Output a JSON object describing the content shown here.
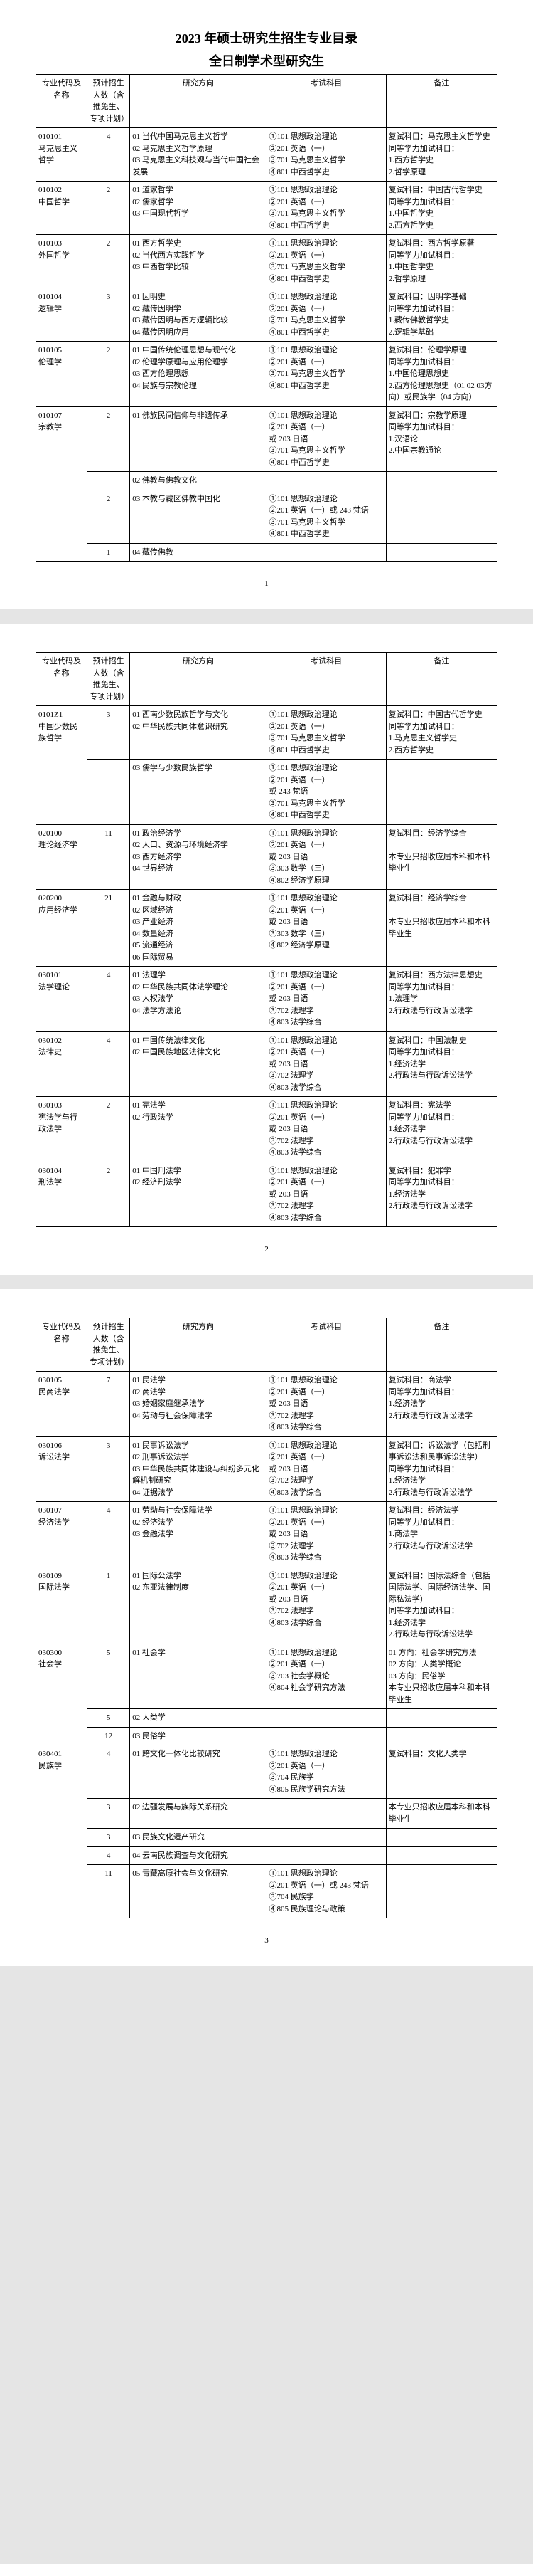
{
  "doc_title": "2023 年硕士研究生招生专业目录",
  "doc_subtitle": "全日制学术型研究生",
  "headers": {
    "code": "专业代码及名称",
    "count": "预计招生人数（含推免生、专项计划）",
    "dir": "研究方向",
    "exam": "考试科目",
    "note": "备注"
  },
  "page1": {
    "rows": [
      {
        "code": "010101\n马克思主义哲学",
        "count": "4",
        "dirs": "01 当代中国马克思主义哲学\n02 马克思主义哲学原理\n03 马克思主义科技观与当代中国社会发展",
        "exam": "①101 思想政治理论\n②201 英语（一）\n③701 马克思主义哲学\n④801 中西哲学史",
        "note": "复试科目：马克思主义哲学史\n同等学力加试科目：\n1.西方哲学史\n2.哲学原理"
      },
      {
        "code": "010102\n中国哲学",
        "count": "2",
        "dirs": "01 道家哲学\n02 儒家哲学\n03 中国现代哲学",
        "exam": "①101 思想政治理论\n②201 英语（一）\n③701 马克思主义哲学\n④801 中西哲学史",
        "note": "复试科目：中国古代哲学史\n同等学力加试科目：\n1.中国哲学史\n2.西方哲学史"
      },
      {
        "code": "010103\n外国哲学",
        "count": "2",
        "dirs": "01 西方哲学史\n02 当代西方实践哲学\n03 中西哲学比较",
        "exam": "①101 思想政治理论\n②201 英语（一）\n③701 马克思主义哲学\n④801 中西哲学史",
        "note": "复试科目：西方哲学原著\n同等学力加试科目：\n1.中国哲学史\n2.哲学原理"
      },
      {
        "code": "010104\n逻辑学",
        "count": "3",
        "dirs": "01 因明史\n02 藏传因明学\n03 藏传因明与西方逻辑比较\n04 藏传因明应用",
        "exam": "①101 思想政治理论\n②201 英语（一）\n③701 马克思主义哲学\n④801 中西哲学史",
        "note": "复试科目：因明学基础\n同等学力加试科目：\n1.藏传佛教哲学史\n2.逻辑学基础"
      },
      {
        "code": "010105\n伦理学",
        "count": "2",
        "dirs": "01 中国传统伦理思想与现代化\n02 伦理学原理与应用伦理学\n03 西方伦理思想\n04 民族与宗教伦理",
        "exam": "①101 思想政治理论\n②201 英语（一）\n③701 马克思主义哲学\n④801 中西哲学史",
        "note": "复试科目：伦理学原理\n同等学力加试科目：\n1.中国伦理思想史\n2.西方伦理思想史（01 02 03方向）或民族学（04 方向）"
      },
      {
        "code": "010107\n宗教学",
        "count": "2",
        "sub": [
          {
            "dirs": "01 佛族民间信仰与非遗传承",
            "exam": "①101 思想政治理论\n②201 英语（一）\n或 203 日语\n③701 马克思主义哲学\n④801 中西哲学史",
            "note": "复试科目：宗教学原理\n同等学力加试科目：\n1.汉语论\n2.中国宗教通论"
          },
          {
            "dirs": "02 佛教与佛教文化",
            "exam": "",
            "note": ""
          },
          {
            "count": "2",
            "dirs": "03 本教与藏区佛教中国化",
            "exam": "①101 思想政治理论\n②201 英语（一）或 243 梵语\n③701 马克思主义哲学\n④801 中西哲学史",
            "note": ""
          },
          {
            "count": "1",
            "dirs": "04 藏传佛教",
            "exam": "",
            "note": ""
          }
        ]
      }
    ],
    "pagenum": "1"
  },
  "page2": {
    "rows": [
      {
        "code": "0101Z1\n中国少数民族哲学",
        "count": "3",
        "sub": [
          {
            "dirs": "01 西南少数民族哲学与文化\n02 中华民族共同体意识研究",
            "exam": "①101 思想政治理论\n②201 英语（一）\n③701 马克思主义哲学\n④801 中西哲学史",
            "note": "复试科目：中国古代哲学史\n同等学力加试科目：\n1.马克思主义哲学史\n2.西方哲学史"
          },
          {
            "dirs": "03 儒学与少数民族哲学",
            "exam": "①101 思想政治理论\n②201 英语（一）\n或 243 梵语\n③701 马克思主义哲学\n④801 中西哲学史",
            "note": ""
          }
        ]
      },
      {
        "code": "020100\n理论经济学",
        "count": "11",
        "dirs": "01 政治经济学\n02 人口、资源与环境经济学\n03 西方经济学\n04 世界经济",
        "exam": "①101 思想政治理论\n②201 英语（一）\n或 203 日语\n③303 数学（三）\n④802 经济学原理",
        "note": "复试科目：经济学综合\n\n本专业只招收应届本科和本科毕业生"
      },
      {
        "code": "020200\n应用经济学",
        "count": "21",
        "dirs": "01 金融与财政\n02 区域经济\n03 产业经济\n04 数量经济\n05 流通经济\n06 国际贸易",
        "exam": "①101 思想政治理论\n②201 英语（一）\n或 203 日语\n③303 数学（三）\n④802 经济学原理",
        "note": "复试科目：经济学综合\n\n本专业只招收应届本科和本科毕业生"
      },
      {
        "code": "030101\n法学理论",
        "count": "4",
        "dirs": "01 法理学\n02 中华民族共同体法学理论\n03 人权法学\n04 法学方法论",
        "exam": "①101 思想政治理论\n②201 英语（一）\n或 203 日语\n③702 法理学\n④803 法学综合",
        "note": "复试科目：西方法律思想史\n同等学力加试科目：\n1.法理学\n2.行政法与行政诉讼法学"
      },
      {
        "code": "030102\n法律史",
        "count": "4",
        "dirs": "01 中国传统法律文化\n02 中国民族地区法律文化",
        "exam": "①101 思想政治理论\n②201 英语（一）\n或 203 日语\n③702 法理学\n④803 法学综合",
        "note": "复试科目：中国法制史\n同等学力加试科目：\n1.经济法学\n2.行政法与行政诉讼法学"
      },
      {
        "code": "030103\n宪法学与行政法学",
        "count": "2",
        "dirs": "01 宪法学\n02 行政法学",
        "exam": "①101 思想政治理论\n②201 英语（一）\n或 203 日语\n③702 法理学\n④803 法学综合",
        "note": "复试科目：宪法学\n同等学力加试科目：\n1.经济法学\n2.行政法与行政诉讼法学"
      },
      {
        "code": "030104\n刑法学",
        "count": "2",
        "dirs": "01 中国刑法学\n02 经济刑法学",
        "exam": "①101 思想政治理论\n②201 英语（一）\n或 203 日语\n③702 法理学\n④803 法学综合",
        "note": "复试科目：犯罪学\n同等学力加试科目：\n1.经济法学\n2.行政法与行政诉讼法学"
      }
    ],
    "pagenum": "2"
  },
  "page3": {
    "rows": [
      {
        "code": "030105\n民商法学",
        "count": "7",
        "dirs": "01 民法学\n02 商法学\n03 婚姻家庭继承法学\n04 劳动与社会保障法学",
        "exam": "①101 思想政治理论\n②201 英语（一）\n或 203 日语\n③702 法理学\n④803 法学综合",
        "note": "复试科目：商法学\n同等学力加试科目：\n1.经济法学\n2.行政法与行政诉讼法学"
      },
      {
        "code": "030106\n诉讼法学",
        "count": "3",
        "dirs": "01 民事诉讼法学\n02 刑事诉讼法学\n03 中华民族共同体建设与纠纷多元化解机制研究\n04 证据法学",
        "exam": "①101 思想政治理论\n②201 英语（一）\n或 203 日语\n③702 法理学\n④803 法学综合",
        "note": "复试科目：诉讼法学（包括刑事诉讼法和民事诉讼法学）\n同等学力加试科目：\n1.经济法学\n2.行政法与行政诉讼法学"
      },
      {
        "code": "030107\n经济法学",
        "count": "4",
        "dirs": "01 劳动与社会保障法学\n02 经济法学\n03 金融法学",
        "exam": "①101 思想政治理论\n②201 英语（一）\n或 203 日语\n③702 法理学\n④803 法学综合",
        "note": "复试科目：经济法学\n同等学力加试科目：\n1.商法学\n2.行政法与行政诉讼法学"
      },
      {
        "code": "030109\n国际法学",
        "count": "1",
        "dirs": "01 国际公法学\n02 东亚法律制度",
        "exam": "①101 思想政治理论\n②201 英语（一）\n或 203 日语\n③702 法理学\n④803 法学综合",
        "note": "复试科目：国际法综合（包括国际法学、国际经济法学、国际私法学）\n同等学力加试科目：\n1.经济法学\n2.行政法与行政诉讼法学"
      },
      {
        "code": "030300\n社会学",
        "count": "5",
        "sub": [
          {
            "dirs": "01 社会学",
            "exam": "①101 思想政治理论\n②201 英语（一）\n③703 社会学概论\n④804 社会学研究方法",
            "note": "01 方向：社会学研究方法\n02 方向：人类学概论\n03 方向：民俗学\n本专业只招收应届本科和本科毕业生"
          },
          {
            "count": "5",
            "dirs": "02 人类学",
            "exam": "",
            "note": ""
          },
          {
            "count": "12",
            "dirs": "03 民俗学",
            "exam": "",
            "note": ""
          }
        ]
      },
      {
        "code": "030401\n民族学",
        "count": "4",
        "sub": [
          {
            "dirs": "01 跨文化一体化比较研究",
            "exam": "①101 思想政治理论\n②201 英语（一）\n③704 民族学\n④805 民族学研究方法",
            "note": "复试科目：文化人类学"
          },
          {
            "count": "3",
            "dirs": "02 边疆发展与族际关系研究",
            "exam": "",
            "note": "本专业只招收应届本科和本科毕业生"
          },
          {
            "count": "3",
            "dirs": "03 民族文化遗产研究",
            "exam": "",
            "note": ""
          },
          {
            "count": "4",
            "dirs": "04 云南民族调查与文化研究",
            "exam": "",
            "note": ""
          },
          {
            "count": "11",
            "dirs": "05 青藏高原社会与文化研究",
            "exam": "①101 思想政治理论\n②201 英语（一）或 243 梵语\n③704 民族学\n④805 民族理论与政策",
            "note": ""
          }
        ]
      }
    ],
    "pagenum": "3"
  }
}
